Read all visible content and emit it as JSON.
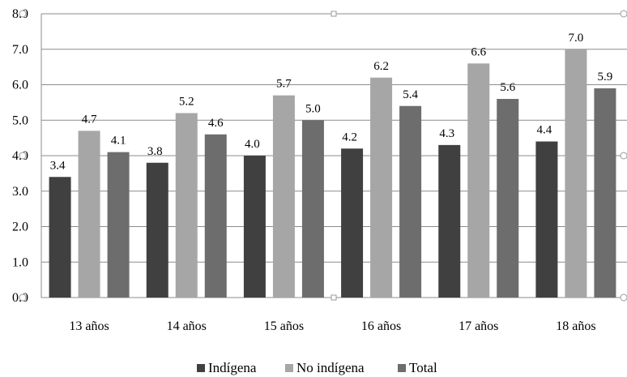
{
  "chart_data": {
    "type": "bar",
    "title": "",
    "xlabel": "",
    "ylabel": "",
    "categories": [
      "13 años",
      "14 años",
      "15 años",
      "16 años",
      "17 años",
      "18 años"
    ],
    "series": [
      {
        "name": "Indígena",
        "color": "#404040",
        "values": [
          3.4,
          3.8,
          4.0,
          4.2,
          4.3,
          4.4
        ]
      },
      {
        "name": "No indígena",
        "color": "#a6a6a6",
        "values": [
          4.7,
          5.2,
          5.7,
          6.2,
          6.6,
          7.0
        ]
      },
      {
        "name": "Total",
        "color": "#6d6d6d",
        "values": [
          4.1,
          4.6,
          5.0,
          5.4,
          5.6,
          5.9
        ]
      }
    ],
    "ylim": [
      0,
      8
    ],
    "yticks": [
      "0.0",
      "1.0",
      "2.0",
      "3.0",
      "4.0",
      "5.0",
      "6.0",
      "7.0",
      "8.0"
    ],
    "grid": true,
    "legend_position": "bottom",
    "data_labels": true
  }
}
